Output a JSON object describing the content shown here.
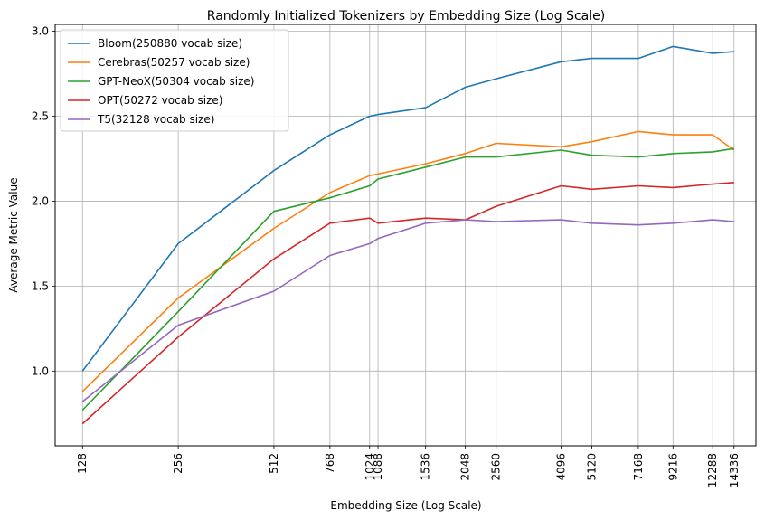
{
  "chart_data": {
    "type": "line",
    "title": "Randomly Initialized Tokenizers by Embedding Size (Log Scale)",
    "xlabel": "Embedding Size (Log Scale)",
    "ylabel": "Average Metric Value",
    "xscale": "log2",
    "x": [
      128,
      256,
      512,
      768,
      1024,
      1088,
      1536,
      2048,
      2560,
      4096,
      5120,
      7168,
      9216,
      12288,
      14336
    ],
    "x_tick_labels": [
      "128",
      "256",
      "512",
      "768",
      "1024",
      "1088",
      "1536",
      "2048",
      "2560",
      "4096",
      "5120",
      "7168",
      "9216",
      "12288",
      "14336"
    ],
    "xlim": [
      105,
      16800
    ],
    "ylim": [
      0.56,
      3.04
    ],
    "y_ticks": [
      1.0,
      1.5,
      2.0,
      2.5,
      3.0
    ],
    "y_tick_labels": [
      "1.0",
      "1.5",
      "2.0",
      "2.5",
      "3.0"
    ],
    "grid": true,
    "legend_position": "top-left",
    "series": [
      {
        "name": "Bloom(250880 vocab size)",
        "color": "#1f77b4",
        "values": [
          1.0,
          1.75,
          2.18,
          2.39,
          2.5,
          2.51,
          2.55,
          2.67,
          2.72,
          2.82,
          2.84,
          2.84,
          2.91,
          2.87,
          2.88
        ]
      },
      {
        "name": "Cerebras(50257 vocab size)",
        "color": "#ff7f0e",
        "values": [
          0.88,
          1.43,
          1.84,
          2.05,
          2.15,
          2.16,
          2.22,
          2.28,
          2.34,
          2.32,
          2.35,
          2.41,
          2.39,
          2.39,
          2.3
        ]
      },
      {
        "name": "GPT-NeoX(50304 vocab size)",
        "color": "#2ca02c",
        "values": [
          0.77,
          1.35,
          1.94,
          2.02,
          2.09,
          2.13,
          2.2,
          2.26,
          2.26,
          2.3,
          2.27,
          2.26,
          2.28,
          2.29,
          2.31
        ]
      },
      {
        "name": "OPT(50272 vocab size)",
        "color": "#d62728",
        "values": [
          0.69,
          1.2,
          1.66,
          1.87,
          1.9,
          1.87,
          1.9,
          1.89,
          1.97,
          2.09,
          2.07,
          2.09,
          2.08,
          2.1,
          2.11
        ]
      },
      {
        "name": "T5(32128 vocab size)",
        "color": "#9467bd",
        "values": [
          0.82,
          1.27,
          1.47,
          1.68,
          1.75,
          1.78,
          1.87,
          1.89,
          1.88,
          1.89,
          1.87,
          1.86,
          1.87,
          1.89,
          1.88
        ]
      }
    ]
  }
}
